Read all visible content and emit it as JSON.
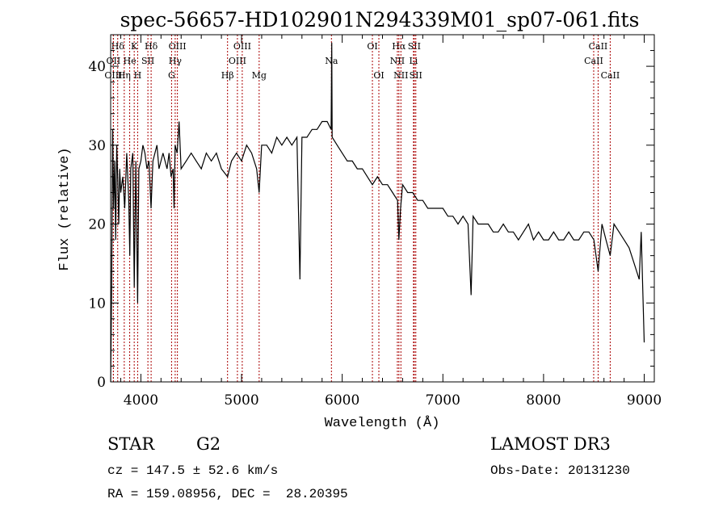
{
  "chart_data": {
    "type": "line",
    "title": "spec-56657-HD102901N294339M01_sp07-061.fits",
    "xlabel": "Wavelength (Å)",
    "ylabel": "Flux (relative)",
    "xlim": [
      3700,
      9100
    ],
    "ylim": [
      0,
      44
    ],
    "xticks": [
      4000,
      5000,
      6000,
      7000,
      8000,
      9000
    ],
    "yticks": [
      0,
      10,
      20,
      30,
      40
    ],
    "grid": false,
    "legend": "none",
    "series": [
      {
        "name": "flux",
        "color": "#000000",
        "x": [
          3700,
          3710,
          3720,
          3730,
          3740,
          3750,
          3760,
          3770,
          3780,
          3790,
          3800,
          3820,
          3840,
          3860,
          3880,
          3890,
          3900,
          3920,
          3934,
          3950,
          3968,
          3980,
          4000,
          4020,
          4040,
          4060,
          4080,
          4101,
          4120,
          4140,
          4160,
          4180,
          4200,
          4220,
          4240,
          4260,
          4280,
          4300,
          4320,
          4330,
          4340,
          4360,
          4380,
          4400,
          4450,
          4500,
          4550,
          4600,
          4650,
          4700,
          4750,
          4800,
          4861,
          4900,
          4950,
          5000,
          5050,
          5100,
          5150,
          5175,
          5200,
          5250,
          5300,
          5350,
          5400,
          5450,
          5500,
          5550,
          5580,
          5600,
          5650,
          5700,
          5750,
          5800,
          5850,
          5890,
          5896,
          5900,
          5950,
          6000,
          6050,
          6100,
          6150,
          6200,
          6250,
          6300,
          6350,
          6400,
          6450,
          6500,
          6550,
          6563,
          6580,
          6600,
          6650,
          6700,
          6750,
          6800,
          6850,
          6900,
          6950,
          7000,
          7050,
          7100,
          7150,
          7200,
          7250,
          7280,
          7300,
          7350,
          7400,
          7450,
          7500,
          7550,
          7600,
          7650,
          7700,
          7750,
          7800,
          7850,
          7900,
          7950,
          8000,
          8050,
          8100,
          8150,
          8200,
          8250,
          8300,
          8350,
          8400,
          8450,
          8500,
          8542,
          8580,
          8620,
          8662,
          8700,
          8750,
          8800,
          8850,
          8900,
          8950,
          8970,
          9000
        ],
        "y": [
          0,
          12,
          32,
          22,
          28,
          18,
          30,
          26,
          20,
          27,
          24,
          26,
          22,
          29,
          23,
          16,
          27,
          29,
          12,
          28,
          10,
          27,
          28,
          30,
          29,
          27,
          28,
          22,
          28,
          29,
          30,
          27,
          28,
          29,
          28,
          27,
          29,
          26,
          27,
          22,
          30,
          29,
          33,
          27,
          28,
          29,
          28,
          27,
          29,
          28,
          29,
          27,
          26,
          28,
          29,
          28,
          30,
          29,
          27,
          24,
          30,
          30,
          29,
          31,
          30,
          31,
          30,
          31,
          13,
          31,
          31,
          32,
          32,
          33,
          33,
          32,
          43,
          31,
          30,
          29,
          28,
          28,
          27,
          27,
          26,
          25,
          26,
          25,
          25,
          24,
          23,
          18,
          22,
          25,
          24,
          24,
          23,
          23,
          22,
          22,
          22,
          22,
          21,
          21,
          20,
          21,
          20,
          11,
          21,
          20,
          20,
          20,
          19,
          19,
          20,
          19,
          19,
          18,
          19,
          20,
          18,
          19,
          18,
          18,
          19,
          18,
          18,
          19,
          18,
          18,
          19,
          19,
          18,
          14,
          20,
          18,
          16,
          20,
          19,
          18,
          17,
          15,
          13,
          19,
          5
        ]
      }
    ],
    "spectral_lines": [
      {
        "label": "Hδ",
        "wavelength": 3770,
        "row": 1
      },
      {
        "label": "OII",
        "wavelength": 3727,
        "row": 2
      },
      {
        "label": "OIII",
        "wavelength": 3727,
        "row": 3
      },
      {
        "label": "K",
        "wavelength": 3934,
        "row": 1
      },
      {
        "label": "He",
        "wavelength": 3889,
        "row": 2
      },
      {
        "label": "Hη",
        "wavelength": 3835,
        "row": 3
      },
      {
        "label": "SII",
        "wavelength": 4070,
        "row": 2
      },
      {
        "label": "H",
        "wavelength": 3968,
        "row": 3
      },
      {
        "label": "Hδ",
        "wavelength": 4102,
        "row": 1
      },
      {
        "label": "OIII",
        "wavelength": 4363,
        "row": 1
      },
      {
        "label": "Hγ",
        "wavelength": 4341,
        "row": 2
      },
      {
        "label": "G",
        "wavelength": 4305,
        "row": 3
      },
      {
        "label": "OIII",
        "wavelength": 5007,
        "row": 1
      },
      {
        "label": "OIII",
        "wavelength": 4959,
        "row": 2
      },
      {
        "label": "Hβ",
        "wavelength": 4861,
        "row": 3
      },
      {
        "label": "Mg",
        "wavelength": 5175,
        "row": 3
      },
      {
        "label": "Na",
        "wavelength": 5893,
        "row": 2
      },
      {
        "label": "OI",
        "wavelength": 6300,
        "row": 1
      },
      {
        "label": "OI",
        "wavelength": 6364,
        "row": 3
      },
      {
        "label": "Hα",
        "wavelength": 6563,
        "row": 1
      },
      {
        "label": "NII",
        "wavelength": 6548,
        "row": 2
      },
      {
        "label": "NII",
        "wavelength": 6583,
        "row": 3
      },
      {
        "label": "SII",
        "wavelength": 6716,
        "row": 1
      },
      {
        "label": "Li",
        "wavelength": 6708,
        "row": 2
      },
      {
        "label": "SII",
        "wavelength": 6731,
        "row": 3
      },
      {
        "label": "CaII",
        "wavelength": 8542,
        "row": 1
      },
      {
        "label": "CaII",
        "wavelength": 8498,
        "row": 2
      },
      {
        "label": "CaII",
        "wavelength": 8662,
        "row": 3
      }
    ],
    "line_color": "#aa0000"
  },
  "info": {
    "object_type": "STAR",
    "subclass": "G2",
    "survey": "LAMOST DR3",
    "redshift": "cz = 147.5 ± 52.6 km/s",
    "obs_date": "Obs-Date: 20131230",
    "coords": "RA = 159.08956, DEC =  28.20395"
  }
}
